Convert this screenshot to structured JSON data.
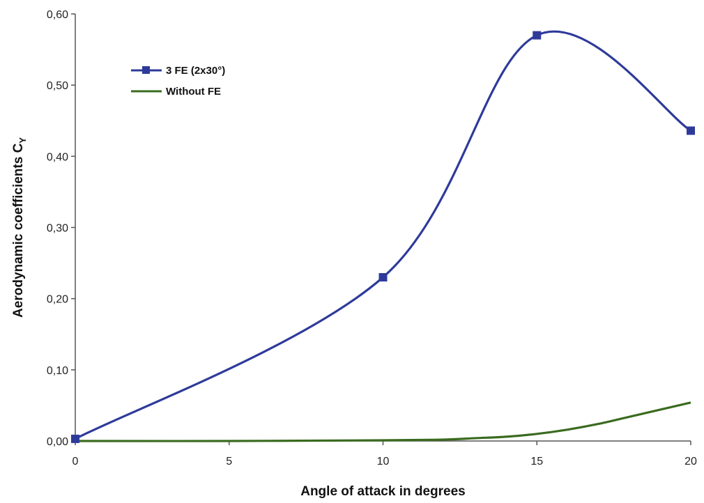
{
  "chart_data": {
    "type": "line",
    "title": "",
    "xlabel": "Angle of attack in degrees",
    "ylabel": "Aerodynamic coefficients C",
    "ylabel_sub": "Y",
    "xlim": [
      0,
      20
    ],
    "ylim": [
      0,
      0.6
    ],
    "x_ticks": [
      "0",
      "5",
      "10",
      "15",
      "20"
    ],
    "y_ticks": [
      "0,00",
      "0,10",
      "0,20",
      "0,30",
      "0,40",
      "0,50",
      "0,60"
    ],
    "grid": false,
    "legend_position": "top-left",
    "series": [
      {
        "name": "3 FE (2x30°)",
        "color": "#2e3a9a",
        "marker": "square",
        "x": [
          0,
          10,
          15,
          20
        ],
        "y": [
          0.003,
          0.23,
          0.57,
          0.436
        ]
      },
      {
        "name": "Without FE",
        "color": "#3a6b1f",
        "marker": "none",
        "x": [
          0,
          5,
          10,
          12,
          13,
          14,
          15,
          16,
          17,
          18,
          19,
          20
        ],
        "y": [
          0.0,
          0.0,
          0.001,
          0.002,
          0.004,
          0.006,
          0.01,
          0.016,
          0.024,
          0.034,
          0.044,
          0.054
        ]
      }
    ]
  }
}
